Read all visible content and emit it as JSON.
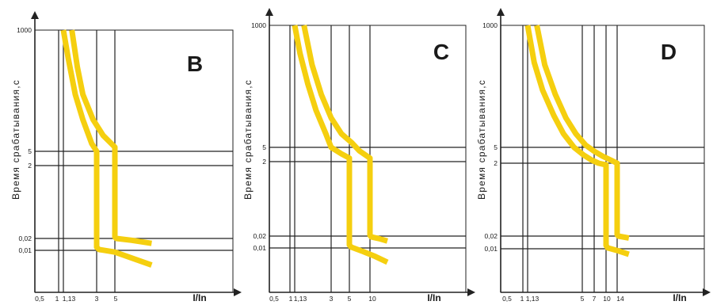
{
  "colors": {
    "curve": "#f5cf0f",
    "line": "#222222",
    "background": "#ffffff"
  },
  "chart_data": [
    {
      "type": "line",
      "title": "B",
      "ylabel": "Время  срабатывания,с",
      "xlabel": "I/In",
      "x_ticks": [
        "0,5",
        "1",
        "1,13",
        "3",
        "5"
      ],
      "x_tick_values": [
        0.5,
        1,
        1.13,
        3,
        5
      ],
      "y_ticks": [
        "1000",
        "5",
        "2",
        "0,02",
        "0,01"
      ],
      "y_tick_values": [
        1000,
        5,
        2,
        0.02,
        0.01
      ],
      "series": [
        {
          "x": [
            1.13,
            1.3,
            1.6,
            2.0,
            2.6,
            3.0,
            3.0,
            3.2,
            5,
            8,
            14
          ],
          "y": [
            1000,
            300,
            60,
            20,
            7,
            5,
            0.012,
            0.0105,
            0.0095,
            0.008,
            0.0065
          ]
        },
        {
          "x": [
            1.45,
            1.7,
            2.0,
            2.7,
            3.6,
            5.0,
            5.0,
            5.2,
            8,
            14
          ],
          "y": [
            1000,
            200,
            60,
            20,
            10,
            6,
            0.022,
            0.02,
            0.018,
            0.015
          ]
        }
      ]
    },
    {
      "type": "line",
      "title": "C",
      "ylabel": "Время  срабатывания,с",
      "xlabel": "I/In",
      "x_ticks": [
        "0,5",
        "1",
        "1,13",
        "3",
        "5",
        "10"
      ],
      "x_tick_values": [
        0.5,
        1,
        1.13,
        3,
        5,
        10
      ],
      "y_ticks": [
        "1000",
        "5",
        "2",
        "0,02",
        "0,01"
      ],
      "y_tick_values": [
        1000,
        5,
        2,
        0.02,
        0.01
      ],
      "series": [
        {
          "x": [
            1.13,
            1.3,
            1.6,
            2.0,
            2.6,
            3.0,
            4.0,
            5.0,
            5.0,
            5.3,
            8,
            12,
            18
          ],
          "y": [
            1000,
            300,
            80,
            25,
            9,
            5,
            3.3,
            2.5,
            0.012,
            0.0105,
            0.009,
            0.0078,
            0.0066
          ]
        },
        {
          "x": [
            1.45,
            1.8,
            2.3,
            3.0,
            4.0,
            5.5,
            7.0,
            10.0,
            10.0,
            10.5,
            14,
            18
          ],
          "y": [
            1000,
            180,
            50,
            18,
            9,
            6,
            4,
            2.5,
            0.021,
            0.019,
            0.017,
            0.015
          ]
        }
      ]
    },
    {
      "type": "line",
      "title": "D",
      "ylabel": "Время  срабатывания,с",
      "xlabel": "I/In",
      "x_ticks": [
        "0,5",
        "1",
        "1,13",
        "5",
        "7",
        "10",
        "14"
      ],
      "x_tick_values": [
        0.5,
        1,
        1.13,
        5,
        7,
        10,
        14
      ],
      "y_ticks": [
        "1000",
        "5",
        "2",
        "0,02",
        "0,01"
      ],
      "y_tick_values": [
        1000,
        5,
        2,
        0.02,
        0.01
      ],
      "series": [
        {
          "x": [
            1.13,
            1.35,
            1.7,
            2.3,
            3.0,
            4.0,
            5.2,
            6.5,
            8.0,
            10.0,
            10.0,
            10.5,
            14,
            20
          ],
          "y": [
            1000,
            200,
            60,
            20,
            9,
            5,
            3.2,
            2.4,
            2.0,
            1.8,
            0.012,
            0.0105,
            0.0095,
            0.0085
          ]
        },
        {
          "x": [
            1.45,
            1.8,
            2.4,
            3.2,
            4.2,
            5.5,
            7.0,
            9.0,
            12.0,
            14.0,
            14.0,
            14.5,
            20
          ],
          "y": [
            1000,
            180,
            50,
            18,
            9,
            5.5,
            4.0,
            3.0,
            2.3,
            2.0,
            0.022,
            0.02,
            0.018
          ]
        }
      ]
    }
  ]
}
